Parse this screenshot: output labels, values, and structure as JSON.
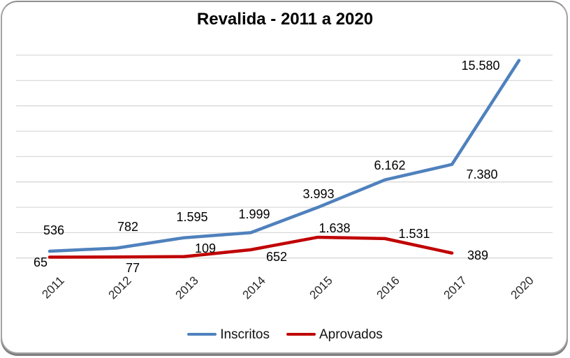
{
  "chart_data": {
    "type": "line",
    "title": "Revalida - 2011 a 2020",
    "categories": [
      "2011",
      "2012",
      "2013",
      "2014",
      "2015",
      "2016",
      "2017",
      "2020"
    ],
    "series": [
      {
        "name": "Inscritos",
        "color": "#4F81BD",
        "values": [
          536,
          782,
          1595,
          1999,
          3993,
          6162,
          7380,
          15580
        ],
        "labels": [
          "536",
          "782",
          "1.595",
          "1.999",
          "3.993",
          "6.162",
          "7.380",
          "15.580"
        ]
      },
      {
        "name": "Aprovados",
        "color": "#C00000",
        "values": [
          65,
          77,
          109,
          652,
          1638,
          1531,
          389
        ],
        "labels": [
          "65",
          "77",
          "109",
          "652",
          "1.638",
          "1.531",
          "389"
        ]
      }
    ],
    "xlabel": "",
    "ylabel": "",
    "ylim": [
      0,
      16000
    ],
    "y_gridline_step": 2000,
    "grid": true,
    "y_axis_tick_labels_visible": false,
    "x_tick_rotation_deg": 45,
    "legend_position": "bottom"
  },
  "colors": {
    "gridline": "#D9D9D9",
    "label_text": "#000000",
    "axis_text": "#262626",
    "card_border": "#A3A3A3"
  }
}
